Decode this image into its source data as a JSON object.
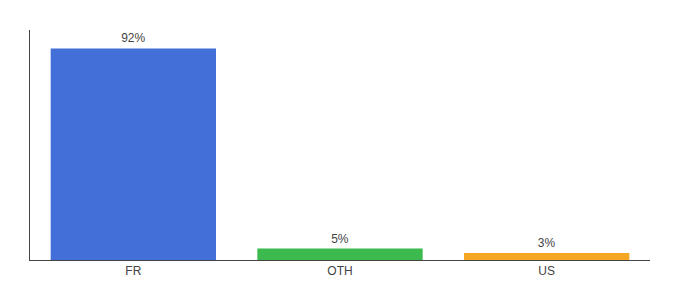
{
  "chart_data": {
    "type": "bar",
    "categories": [
      "FR",
      "OTH",
      "US"
    ],
    "values": [
      92,
      5,
      3
    ],
    "value_labels": [
      "92%",
      "5%",
      "3%"
    ],
    "colors": [
      "#4370d8",
      "#3dba4e",
      "#f5a623"
    ],
    "data_labels": true,
    "ylim": [
      0,
      100
    ],
    "yticks": [],
    "grid": false,
    "tick_labels": "x"
  }
}
